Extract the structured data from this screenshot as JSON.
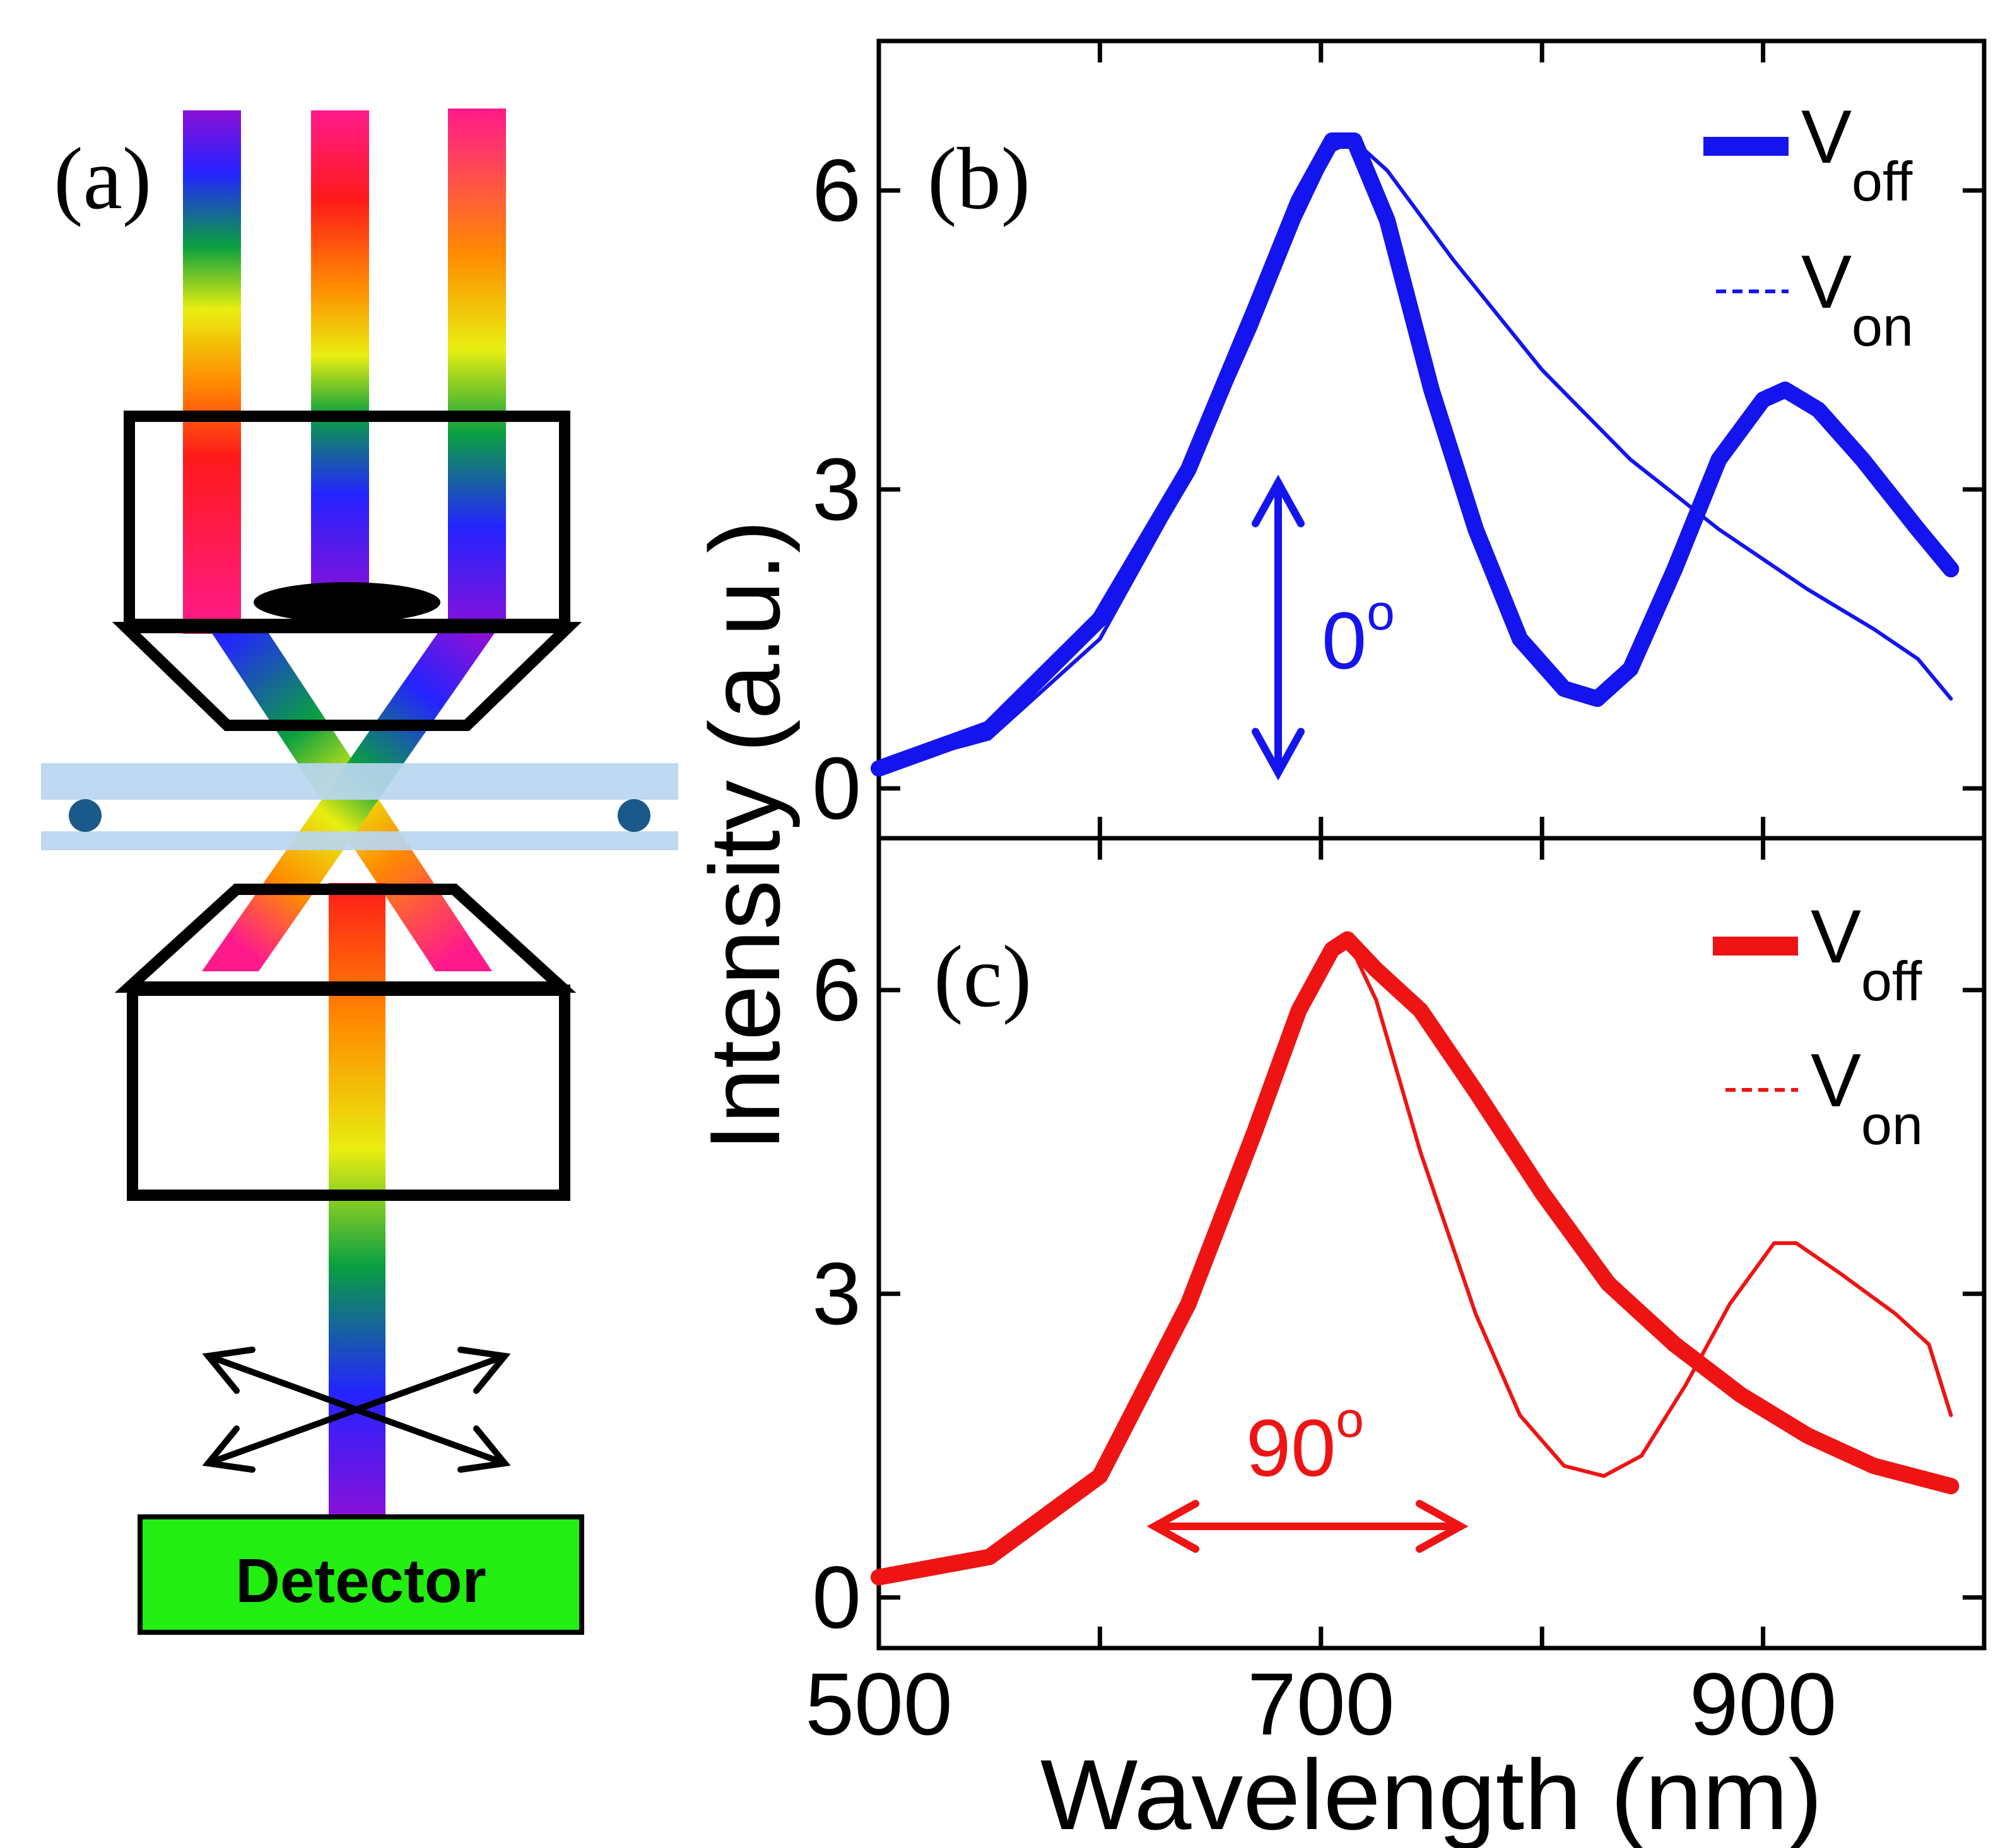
{
  "panel_a": {
    "label": "(a)",
    "detector_label": "Detector",
    "colors": {
      "detector_fill": "#22ee11",
      "substrate": "#b8d6f0",
      "particle": "#1a5a8a",
      "outline": "#000000"
    }
  },
  "colors": {
    "blue": "#1414ee",
    "red": "#ee1414"
  },
  "shared_axes": {
    "xlabel": "Wavelength (nm)",
    "ylabel": "Intensity (a.u.)",
    "xlim": [
      500,
      1000
    ],
    "ylim": [
      -0.5,
      7.5
    ],
    "xticks": [
      500,
      700,
      900
    ],
    "xtick_labels": [
      "500",
      "700",
      "900"
    ],
    "yticks": [
      0,
      3,
      6
    ],
    "ytick_labels": [
      "0",
      "3",
      "6"
    ]
  },
  "chart_data": [
    {
      "type": "line",
      "panel_label": "(b)",
      "xlabel": "Wavelength (nm)",
      "ylabel": "Intensity (a.u.)",
      "xlim": [
        500,
        1000
      ],
      "ylim": [
        -0.5,
        7.5
      ],
      "polarization": {
        "value": "0",
        "superscript": "o",
        "direction": "vertical"
      },
      "legend": {
        "position": "top-right",
        "entries": [
          {
            "base": "V",
            "sub": "off",
            "style": "thick"
          },
          {
            "base": "V",
            "sub": "on",
            "style": "dashed"
          }
        ]
      },
      "series": [
        {
          "name": "V_off",
          "style": "thick",
          "x": [
            500,
            550,
            600,
            640,
            670,
            690,
            705,
            715,
            730,
            750,
            770,
            790,
            810,
            825,
            840,
            860,
            880,
            900,
            910,
            925,
            945,
            970,
            985
          ],
          "y": [
            0.2,
            0.6,
            1.7,
            3.2,
            4.8,
            5.9,
            6.5,
            6.5,
            5.7,
            4.0,
            2.6,
            1.5,
            1.0,
            0.9,
            1.2,
            2.2,
            3.3,
            3.9,
            4.0,
            3.8,
            3.3,
            2.6,
            2.2
          ]
        },
        {
          "name": "V_on",
          "style": "dashed",
          "x": [
            500,
            550,
            600,
            640,
            670,
            690,
            705,
            715,
            730,
            760,
            800,
            840,
            880,
            920,
            950,
            970,
            985
          ],
          "y": [
            0.2,
            0.5,
            1.5,
            3.1,
            4.6,
            5.7,
            6.4,
            6.5,
            6.2,
            5.3,
            4.2,
            3.3,
            2.6,
            2.0,
            1.6,
            1.3,
            0.9
          ]
        }
      ]
    },
    {
      "type": "line",
      "panel_label": "(c)",
      "xlabel": "Wavelength (nm)",
      "ylabel": "Intensity (a.u.)",
      "xlim": [
        500,
        1000
      ],
      "ylim": [
        -0.5,
        7.5
      ],
      "polarization": {
        "value": "90",
        "superscript": "o",
        "direction": "horizontal"
      },
      "legend": {
        "position": "top-right",
        "entries": [
          {
            "base": "V",
            "sub": "off",
            "style": "thick"
          },
          {
            "base": "V",
            "sub": "on",
            "style": "dashed"
          }
        ]
      },
      "series": [
        {
          "name": "V_off",
          "style": "thick",
          "x": [
            500,
            550,
            600,
            640,
            670,
            690,
            705,
            712,
            725,
            745,
            770,
            800,
            830,
            860,
            890,
            920,
            950,
            985
          ],
          "y": [
            0.2,
            0.4,
            1.2,
            2.9,
            4.6,
            5.8,
            6.4,
            6.5,
            6.2,
            5.8,
            5.0,
            4.0,
            3.1,
            2.5,
            2.0,
            1.6,
            1.3,
            1.1
          ]
        },
        {
          "name": "V_on",
          "style": "dashed",
          "x": [
            500,
            550,
            600,
            640,
            670,
            690,
            705,
            712,
            725,
            745,
            770,
            790,
            810,
            828,
            845,
            865,
            885,
            905,
            915,
            935,
            960,
            975,
            985
          ],
          "y": [
            0.2,
            0.4,
            1.2,
            2.9,
            4.6,
            5.8,
            6.4,
            6.5,
            5.9,
            4.4,
            2.8,
            1.8,
            1.3,
            1.2,
            1.4,
            2.1,
            2.9,
            3.5,
            3.5,
            3.2,
            2.8,
            2.5,
            1.8
          ]
        }
      ]
    }
  ]
}
